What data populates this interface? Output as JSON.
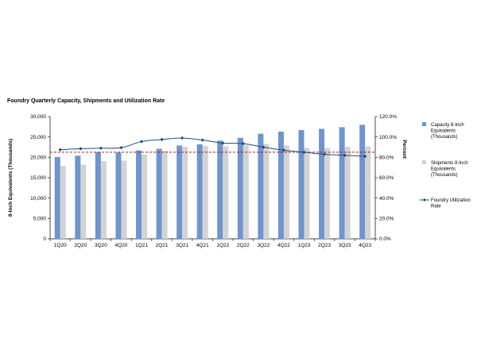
{
  "chart_data": {
    "type": "bar",
    "title": "Foundry Quarterly Capacity, Shipments and Utilization Rate",
    "categories": [
      "1Q20",
      "2Q20",
      "3Q20",
      "4Q20",
      "1Q21",
      "2Q21",
      "3Q21",
      "4Q21",
      "1Q22",
      "2Q22",
      "3Q22",
      "4Q22",
      "1Q23",
      "2Q23",
      "3Q23",
      "4Q23"
    ],
    "ylabel": "8-Inch Equivalents (Thousands)",
    "y2label": "Percent",
    "ylim": [
      0,
      30000
    ],
    "y2lim": [
      0,
      120
    ],
    "yticks": [
      "0",
      "5,000",
      "10,000",
      "15,000",
      "20,000",
      "25,000",
      "30,000"
    ],
    "y2ticks": [
      "0.0%",
      "20.0%",
      "40.0%",
      "60.0%",
      "80.0%",
      "100.0%",
      "120.0%"
    ],
    "reference_line_percent": 85,
    "legend_position": "right",
    "series": [
      {
        "name_lines": [
          "Capacity 8-Inch",
          "Equivalents",
          "(Thousands)"
        ],
        "kind": "bar",
        "axis": "left",
        "color": "#6f94cf",
        "values": [
          20100,
          20400,
          21300,
          21200,
          21700,
          22100,
          22900,
          23200,
          24100,
          24800,
          25800,
          26300,
          26700,
          27000,
          27400,
          28000
        ]
      },
      {
        "name_lines": [
          "Shipments 8-Inch",
          "Equivalents",
          "(Thousands)"
        ],
        "kind": "bar",
        "axis": "left",
        "color": "#d3d3d3",
        "values": [
          17900,
          18200,
          19100,
          19200,
          20700,
          21600,
          22600,
          22800,
          22700,
          23000,
          23300,
          22900,
          22300,
          22300,
          22600,
          22700
        ]
      },
      {
        "name_lines": [
          "Foundry Utilization",
          "Rate"
        ],
        "kind": "line",
        "axis": "right",
        "color": "#1f4e79",
        "values": [
          87.5,
          88.5,
          89.0,
          89.5,
          95.5,
          97.5,
          99.0,
          97.0,
          94.0,
          93.5,
          90.0,
          87.0,
          85.0,
          83.0,
          82.0,
          81.0
        ]
      }
    ]
  }
}
